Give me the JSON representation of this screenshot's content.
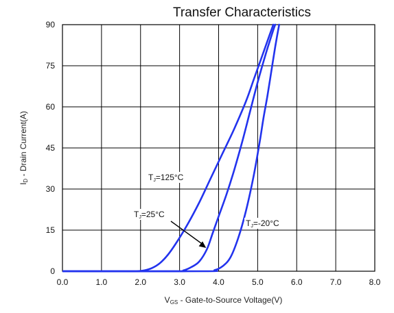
{
  "chart_data": {
    "type": "line",
    "title": "Transfer Characteristics",
    "xlabel": "Vₐₛ - Gate-to-Source Voltage(V)",
    "xlabel_main": "V",
    "xlabel_sub": "GS",
    "xlabel_rest": " - Gate-to-Source Voltage(V)",
    "ylabel_main": "I",
    "ylabel_sub": "D",
    "ylabel_rest": " - Drain Current(A)",
    "xlim": [
      0,
      8
    ],
    "ylim": [
      0,
      90
    ],
    "x_ticks": [
      0,
      1,
      2,
      3,
      4,
      5,
      6,
      7,
      8
    ],
    "x_tick_labels": [
      "0.0",
      "1.0",
      "2.0",
      "3.0",
      "4.0",
      "5.0",
      "6.0",
      "7.0",
      "8.0"
    ],
    "y_ticks": [
      0,
      15,
      30,
      45,
      60,
      75,
      90
    ],
    "y_tick_labels": [
      "0",
      "15",
      "30",
      "45",
      "60",
      "75",
      "90"
    ],
    "grid": true,
    "line_color": "#2233ee",
    "series": [
      {
        "name": "TJ=125°C",
        "label_main": "T",
        "label_sub": "J",
        "label_rest": "=125°C",
        "points": [
          [
            0,
            0
          ],
          [
            1.5,
            0
          ],
          [
            1.9,
            0
          ],
          [
            2.1,
            0.3
          ],
          [
            2.3,
            1.2
          ],
          [
            2.5,
            3
          ],
          [
            2.7,
            6
          ],
          [
            2.9,
            10
          ],
          [
            3.2,
            17
          ],
          [
            3.5,
            25
          ],
          [
            3.8,
            34
          ],
          [
            4.1,
            43
          ],
          [
            4.4,
            52
          ],
          [
            4.7,
            62
          ],
          [
            4.9,
            70
          ],
          [
            5.1,
            78
          ],
          [
            5.3,
            86
          ],
          [
            5.4,
            90
          ]
        ]
      },
      {
        "name": "TJ=25°C",
        "label_main": "T",
        "label_sub": "J",
        "label_rest": "=25°C",
        "points": [
          [
            0,
            0
          ],
          [
            2.9,
            0
          ],
          [
            3.1,
            0.3
          ],
          [
            3.3,
            1.5
          ],
          [
            3.5,
            3.5
          ],
          [
            3.7,
            8
          ],
          [
            3.85,
            14
          ],
          [
            4.0,
            20
          ],
          [
            4.2,
            28
          ],
          [
            4.4,
            37
          ],
          [
            4.6,
            47
          ],
          [
            4.8,
            58
          ],
          [
            5.0,
            69
          ],
          [
            5.2,
            79
          ],
          [
            5.4,
            88
          ],
          [
            5.45,
            90
          ]
        ]
      },
      {
        "name": "TJ=-20°C",
        "label_main": "T",
        "label_sub": "J",
        "label_rest": "=-20°C",
        "points": [
          [
            0,
            0
          ],
          [
            3.6,
            0
          ],
          [
            3.9,
            0.4
          ],
          [
            4.1,
            1.8
          ],
          [
            4.3,
            5
          ],
          [
            4.5,
            12
          ],
          [
            4.7,
            22
          ],
          [
            4.9,
            35
          ],
          [
            5.05,
            47
          ],
          [
            5.15,
            56
          ],
          [
            5.25,
            64
          ],
          [
            5.35,
            73
          ],
          [
            5.45,
            82
          ],
          [
            5.55,
            90
          ]
        ]
      }
    ]
  }
}
